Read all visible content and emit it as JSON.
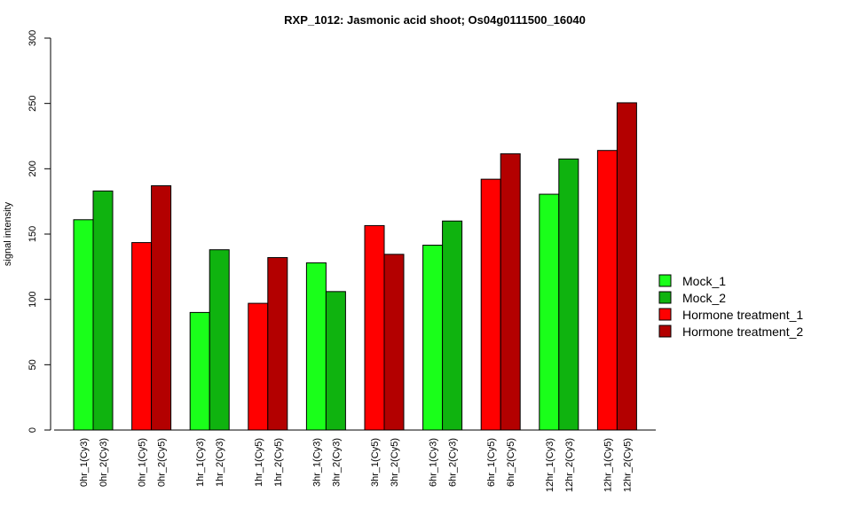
{
  "chart_data": {
    "type": "bar",
    "title": "RXP_1012: Jasmonic acid shoot; Os04g0111500_16040",
    "ylabel": "signal intensity",
    "xlabel": "",
    "ylim": [
      0,
      300
    ],
    "yticks": [
      0,
      50,
      100,
      150,
      200,
      250,
      300
    ],
    "grid": false,
    "legend_position": "right",
    "legend": [
      {
        "name": "Mock_1",
        "color": "#1aff1a"
      },
      {
        "name": "Mock_2",
        "color": "#0fb30f"
      },
      {
        "name": "Hormone treatment_1",
        "color": "#ff0000"
      },
      {
        "name": "Hormone treatment_2",
        "color": "#b30000"
      }
    ],
    "bars": [
      {
        "label": "0hr_1(Cy3)",
        "value": 161,
        "series": 0
      },
      {
        "label": "0hr_2(Cy3)",
        "value": 183,
        "series": 1
      },
      {
        "label": "0hr_1(Cy5)",
        "value": 143.5,
        "series": 2
      },
      {
        "label": "0hr_2(Cy5)",
        "value": 187,
        "series": 3
      },
      {
        "label": "1hr_1(Cy3)",
        "value": 90,
        "series": 0
      },
      {
        "label": "1hr_2(Cy3)",
        "value": 138,
        "series": 1
      },
      {
        "label": "1hr_1(Cy5)",
        "value": 97,
        "series": 2
      },
      {
        "label": "1hr_2(Cy5)",
        "value": 132,
        "series": 3
      },
      {
        "label": "3hr_1(Cy3)",
        "value": 128,
        "series": 0
      },
      {
        "label": "3hr_2(Cy3)",
        "value": 106,
        "series": 1
      },
      {
        "label": "3hr_1(Cy5)",
        "value": 156.5,
        "series": 2
      },
      {
        "label": "3hr_2(Cy5)",
        "value": 134.5,
        "series": 3
      },
      {
        "label": "6hr_1(Cy3)",
        "value": 141.5,
        "series": 0
      },
      {
        "label": "6hr_2(Cy3)",
        "value": 160,
        "series": 1
      },
      {
        "label": "6hr_1(Cy5)",
        "value": 192,
        "series": 2
      },
      {
        "label": "6hr_2(Cy5)",
        "value": 211.5,
        "series": 3
      },
      {
        "label": "12hr_1(Cy3)",
        "value": 180.5,
        "series": 0
      },
      {
        "label": "12hr_2(Cy3)",
        "value": 207.5,
        "series": 1
      },
      {
        "label": "12hr_1(Cy5)",
        "value": 214,
        "series": 2
      },
      {
        "label": "12hr_2(Cy5)",
        "value": 250.5,
        "series": 3
      }
    ]
  }
}
